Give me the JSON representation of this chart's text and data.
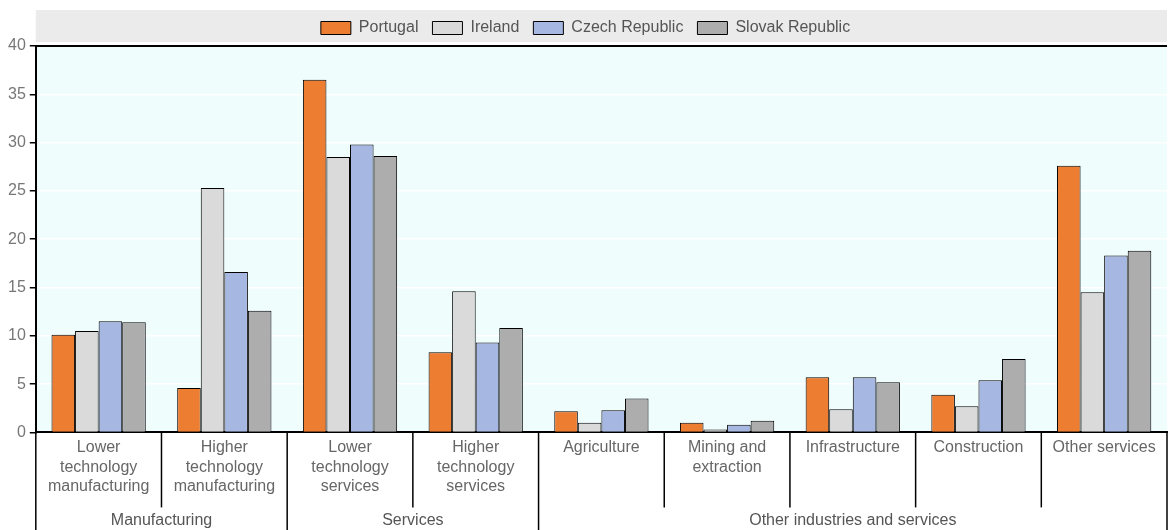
{
  "chart_data": {
    "type": "bar",
    "categories": [
      "Lower technology manufacturing",
      "Higher technology manufacturing",
      "Lower technology services",
      "Higher technology services",
      "Agriculture",
      "Mining and extraction",
      "Infrastructure",
      "Construction",
      "Other services"
    ],
    "series": [
      {
        "name": "Portugal",
        "color": "#ed7d31",
        "values": [
          10.1,
          4.6,
          36.5,
          8.3,
          2.2,
          1.0,
          5.7,
          3.9,
          27.6
        ]
      },
      {
        "name": "Ireland",
        "color": "#dadada",
        "values": [
          10.5,
          25.3,
          28.5,
          14.6,
          1.0,
          0.3,
          2.4,
          2.7,
          14.5
        ]
      },
      {
        "name": "Czech Republic",
        "color": "#a6b7e2",
        "values": [
          11.5,
          16.6,
          29.8,
          9.3,
          2.3,
          0.8,
          5.7,
          5.4,
          18.3
        ]
      },
      {
        "name": "Slovak Republic",
        "color": "#adadad",
        "values": [
          11.4,
          12.6,
          28.6,
          10.8,
          3.5,
          1.2,
          5.2,
          7.6,
          18.8
        ]
      }
    ],
    "ylim": [
      0,
      40
    ],
    "yticks": [
      0,
      5,
      10,
      15,
      20,
      25,
      30,
      35,
      40
    ],
    "grid": "y",
    "legend": "top",
    "annotations": [
      "Manufacturing",
      "Services",
      "Other industries and services"
    ]
  }
}
